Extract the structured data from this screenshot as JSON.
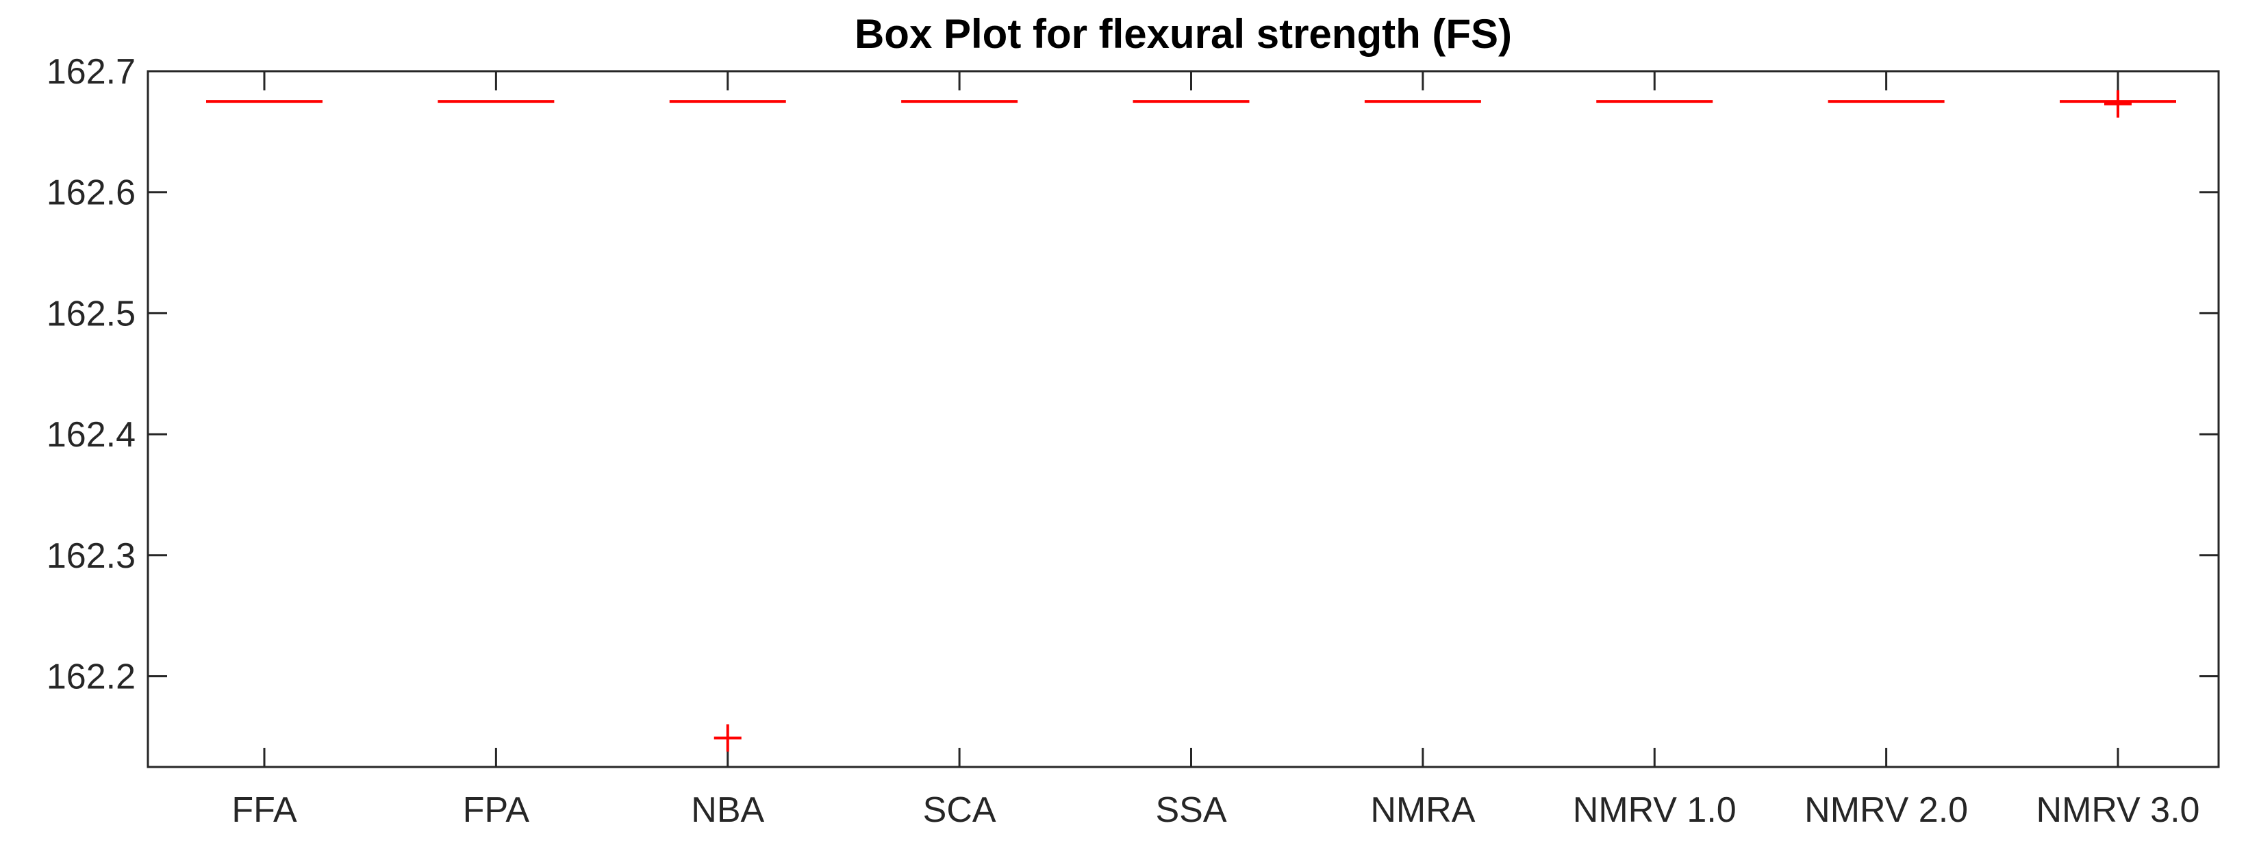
{
  "chart_data": {
    "type": "box",
    "title": "Box Plot for flexural strength (FS)",
    "xlabel": "",
    "ylabel": "",
    "categories": [
      "FFA",
      "FPA",
      "NBA",
      "SCA",
      "SSA",
      "NMRA",
      "NMRV 1.0",
      "NMRV 2.0",
      "NMRV 3.0"
    ],
    "medians": [
      162.675,
      162.675,
      162.675,
      162.675,
      162.675,
      162.675,
      162.675,
      162.675,
      162.675
    ],
    "outliers": [
      {
        "category": "NBA",
        "value": 162.149
      },
      {
        "category": "NMRV 3.0",
        "value": 162.673
      }
    ],
    "ylim": [
      162.125,
      162.7
    ],
    "yticks": [
      "162.2",
      "162.3",
      "162.4",
      "162.5",
      "162.6",
      "162.7"
    ],
    "grid": false,
    "legend": "none",
    "colors": {
      "box": "#ff0000",
      "outlier": "#ff0000",
      "axis": "#262626",
      "title": "#000000"
    }
  }
}
